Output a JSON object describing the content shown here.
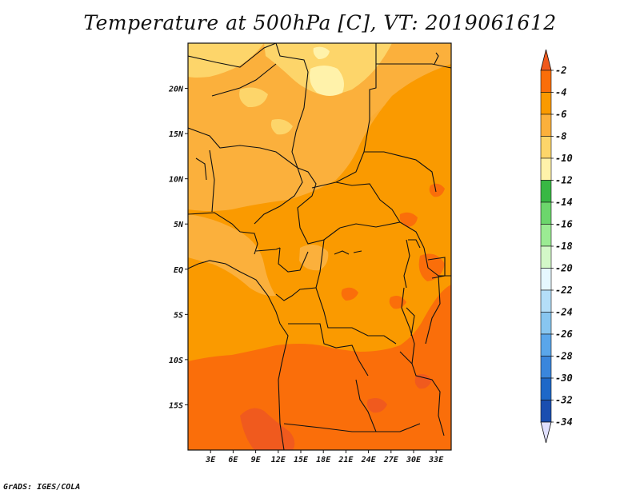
{
  "title": "Temperature at 500hPa [C], VT: 2019061612",
  "credit": "GrADS: IGES/COLA",
  "chart_data": {
    "type": "heatmap",
    "title": "Temperature at 500hPa [C], VT: 2019061612",
    "xlim": [
      0,
      35
    ],
    "ylim": [
      -20,
      25
    ],
    "x_ticks": [
      3,
      6,
      9,
      12,
      15,
      18,
      21,
      24,
      27,
      30,
      33
    ],
    "x_tick_labels": [
      "3E",
      "6E",
      "9E",
      "12E",
      "15E",
      "18E",
      "21E",
      "24E",
      "27E",
      "30E",
      "33E"
    ],
    "y_ticks": [
      20,
      15,
      10,
      5,
      0,
      -5,
      -10,
      -15
    ],
    "y_tick_labels": [
      "20N",
      "15N",
      "10N",
      "5N",
      "EQ",
      "5S",
      "10S",
      "15S"
    ],
    "colorbar": {
      "levels": [
        -2,
        -4,
        -6,
        -8,
        -10,
        -12,
        -14,
        -16,
        -18,
        -20,
        -22,
        -24,
        -26,
        -28,
        -30,
        -32,
        -34
      ],
      "labels": [
        "-2",
        "-4",
        "-6",
        "-8",
        "-10",
        "-12",
        "-14",
        "-16",
        "-18",
        "-20",
        "-22",
        "-24",
        "-26",
        "-28",
        "-30",
        "-32",
        "-34"
      ],
      "colors": [
        "#f05a1e",
        "#fa6e0a",
        "#fa9a00",
        "#fbb03c",
        "#fdd56a",
        "#fff2aa",
        "#38b844",
        "#6cd66c",
        "#9beb93",
        "#d3f8c8",
        "#e6f8ff",
        "#b4def8",
        "#88c6f0",
        "#5aa6ea",
        "#3a86dc",
        "#1e68c8",
        "#1a4eb0",
        "#0e2882",
        "#e0e0ff"
      ]
    }
  }
}
